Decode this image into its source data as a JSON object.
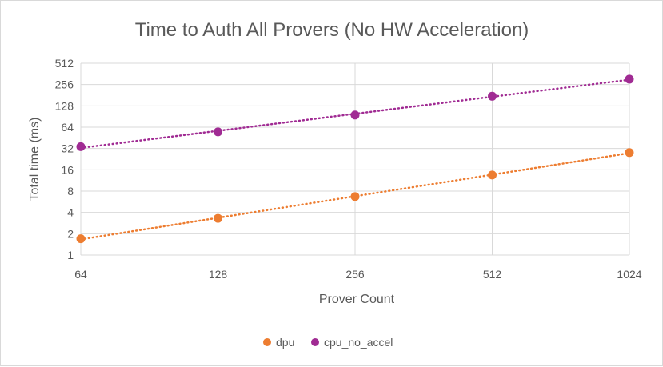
{
  "chart_data": {
    "type": "scatter",
    "title": "Time to Auth All Provers (No HW Acceleration)",
    "xlabel": "Prover Count",
    "ylabel": "Total time (ms)",
    "x_scale": "log2",
    "y_scale": "log2",
    "x": [
      64,
      128,
      256,
      512,
      1024
    ],
    "x_ticks": [
      "64",
      "128",
      "256",
      "512",
      "1024"
    ],
    "y_ticks": [
      "1",
      "2",
      "4",
      "8",
      "16",
      "32",
      "64",
      "128",
      "256",
      "512"
    ],
    "xlim": [
      64,
      1024
    ],
    "ylim": [
      1,
      512
    ],
    "grid": true,
    "trendline": "dotted",
    "legend_position": "bottom",
    "series": [
      {
        "name": "dpu",
        "color": "#ED7D31",
        "values": [
          1.7,
          3.3,
          6.7,
          13.5,
          28
        ]
      },
      {
        "name": "cpu_no_accel",
        "color": "#A02B93",
        "values": [
          34,
          55,
          95,
          175,
          305
        ]
      }
    ]
  }
}
